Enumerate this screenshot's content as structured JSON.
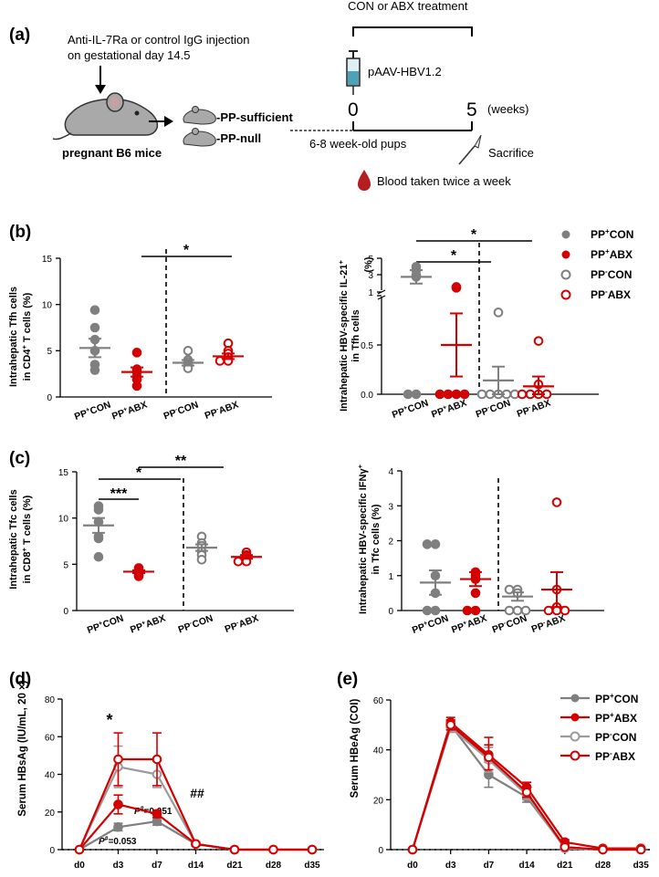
{
  "schematic": {
    "label": "(a)",
    "injection_line1": "Anti-IL-7Ra or control IgG injection",
    "injection_line2": "on gestational day 14.5",
    "mother": "pregnant B6 mice",
    "pp_sufficient": "-PP-sufficient",
    "pp_null": "-PP-null",
    "treatment": "CON or ABX treatment",
    "vector": "pAAV-HBV1.2",
    "week0": "0",
    "week5": "5",
    "weeks": "(weeks)",
    "pups": "6-8 week-old pups",
    "sacrifice": "Sacrifice",
    "blood": "Blood taken twice a week"
  },
  "panel_labels": {
    "b": "(b)",
    "c": "(c)",
    "d": "(d)",
    "e": "(e)"
  },
  "groups": [
    {
      "pre": "PP",
      "sup": "+",
      "post": "CON"
    },
    {
      "pre": "PP",
      "sup": "+",
      "post": "ABX"
    },
    {
      "pre": "PP",
      "sup": "-",
      "post": "CON"
    },
    {
      "pre": "PP",
      "sup": "-",
      "post": "ABX"
    }
  ],
  "colors": {
    "gray": "#7f7f7f",
    "red": "#d40000"
  },
  "scatter_legend": [
    {
      "pre": "PP",
      "sup": "+",
      "post": "CON"
    },
    {
      "pre": "PP",
      "sup": "+",
      "post": "ABX"
    },
    {
      "pre": "PP",
      "sup": "-",
      "post": "CON"
    },
    {
      "pre": "PP",
      "sup": "-",
      "post": "ABX"
    }
  ],
  "line_legend": [
    {
      "pre": "PP",
      "sup": "+",
      "post": "CON"
    },
    {
      "pre": "PP",
      "sup": "+",
      "post": "ABX"
    },
    {
      "pre": "PP",
      "sup": "-",
      "post": "CON"
    },
    {
      "pre": "PP",
      "sup": "-",
      "post": "ABX"
    }
  ],
  "chart_data": [
    {
      "id": "b1",
      "type": "scatter",
      "ylabel1": "Intrahepatic Tfh cells",
      "ylabel2": "in CD4",
      "ylabel2_sup": "+",
      "ylabel2_post": " T cells (%)",
      "ylim": [
        0,
        15
      ],
      "yticks": [
        "0",
        "5",
        "10",
        "15"
      ],
      "points": [
        [
          9.4,
          7.5,
          6.2,
          5.0,
          3.5,
          2.9
        ],
        [
          4.8,
          3.0,
          2.7,
          2.2,
          1.9,
          1.2
        ],
        [
          5.0,
          4.0,
          3.8,
          3.5,
          3.3,
          3.1
        ],
        [
          5.8,
          5.0,
          4.7,
          4.3,
          3.9,
          3.9
        ]
      ],
      "means": [
        5.3,
        2.7,
        3.7,
        4.4
      ],
      "sems": [
        1.0,
        0.5,
        0.3,
        0.3
      ],
      "significance": [
        {
          "from": 1,
          "to": 3,
          "text": "*"
        }
      ]
    },
    {
      "id": "b2",
      "type": "scatter",
      "ylabel1": "Intrahepatic HBV-specific IL-21",
      "ylabel1_sup": "+",
      "ylabel2": "in Tfh cells",
      "ylabel3": "(%)",
      "ylim": [
        0,
        1.0
      ],
      "ybreak_top": [
        1,
        5
      ],
      "yticks": [
        "0.0",
        "0.5",
        "1.0"
      ],
      "yticks_top": [
        "1",
        "3",
        "5"
      ],
      "points": [
        [
          4.0,
          3.6,
          3.0,
          2.8,
          0.0,
          0.0
        ],
        [
          1.6,
          1.5,
          0.0,
          0.0,
          0.0,
          0.0
        ],
        [
          0.83,
          0.0,
          0.0,
          0.0,
          0.0,
          0.0
        ],
        [
          0.54,
          0.1,
          0.0,
          0.0,
          0.0,
          0.0
        ]
      ],
      "means": [
        2.8,
        0.5,
        0.14,
        0.08
      ],
      "sems": [
        0.8,
        0.32,
        0.14,
        0.1
      ],
      "significance": [
        {
          "from": 0,
          "to": 1,
          "text": "*"
        },
        {
          "from": 0,
          "to": 2,
          "text": "*"
        }
      ]
    },
    {
      "id": "c1",
      "type": "scatter",
      "ylabel1": "Intrahepatic Tfc cells",
      "ylabel2": "in CD8",
      "ylabel2_sup": "+",
      "ylabel2_post": " T cells (%)",
      "ylim": [
        0,
        15
      ],
      "yticks": [
        "0",
        "5",
        "10",
        "15"
      ],
      "points": [
        [
          11.3,
          10.9,
          9.6,
          8.0,
          7.8,
          5.8
        ],
        [
          4.6,
          4.3,
          4.2,
          4.1,
          3.9,
          3.7
        ],
        [
          8.0,
          7.3,
          7.0,
          6.4,
          6.0,
          5.5
        ],
        [
          6.3,
          6.0,
          5.9,
          5.7,
          5.3,
          5.3
        ]
      ],
      "means": [
        9.2,
        4.2,
        6.8,
        5.8
      ],
      "sems": [
        0.8,
        0.15,
        0.35,
        0.2
      ],
      "significance": [
        {
          "from": 0,
          "to": 1,
          "text": "***"
        },
        {
          "from": 1,
          "to": 2,
          "text": "*"
        },
        {
          "from": 1,
          "to": 3,
          "text": "**"
        }
      ]
    },
    {
      "id": "c2",
      "type": "scatter",
      "ylabel1": "Intrahepatic HBV-specific IFN",
      "ylabel1_greek": "γ",
      "ylabel1_sup": "+",
      "ylabel2": "in Tfc cells (%)",
      "ylim": [
        0,
        4
      ],
      "yticks": [
        "0",
        "1",
        "2",
        "3",
        "4"
      ],
      "points": [
        [
          1.9,
          1.9,
          1.0,
          0.5,
          0.0,
          0.0
        ],
        [
          1.1,
          1.0,
          0.9,
          0.5,
          0.0,
          0.0
        ],
        [
          0.6,
          0.6,
          0.5,
          0.0,
          0.0,
          0.0
        ],
        [
          3.1,
          0.6,
          0.1,
          0.0,
          0.0,
          0.0
        ]
      ],
      "means": [
        0.8,
        0.9,
        0.4,
        0.6
      ],
      "sems": [
        0.35,
        0.2,
        0.12,
        0.5
      ],
      "significance": []
    },
    {
      "id": "d",
      "type": "line",
      "ylabel": "Serum HBsAg (IU/mL, 20 ×)",
      "categories": [
        "d0",
        "d3",
        "d7",
        "d14",
        "d21",
        "d28",
        "d35"
      ],
      "ylim": [
        0,
        80
      ],
      "yticks": [
        "0",
        "20",
        "40",
        "60",
        "80"
      ],
      "series": [
        {
          "name": "PP+CON",
          "color": "#7f7f7f",
          "open": false,
          "values": [
            0,
            12,
            15,
            3,
            0,
            0,
            0
          ],
          "err": [
            0,
            2,
            2,
            1,
            0,
            0,
            0
          ]
        },
        {
          "name": "PP+ABX",
          "color": "#d40000",
          "open": false,
          "values": [
            0,
            24,
            19,
            3,
            0,
            0,
            0
          ],
          "err": [
            0,
            5,
            2,
            1,
            0,
            0,
            0
          ]
        },
        {
          "name": "PP-CON",
          "color": "#9a9a9a",
          "open": true,
          "values": [
            0,
            44,
            40,
            3,
            0,
            0,
            0
          ],
          "err": [
            0,
            11,
            7,
            1,
            0,
            0,
            0
          ]
        },
        {
          "name": "PP-ABX",
          "color": "#d40000",
          "open": true,
          "values": [
            0,
            48,
            48,
            3,
            0,
            0,
            0
          ],
          "err": [
            0,
            14,
            14,
            1,
            0,
            0,
            0
          ]
        }
      ],
      "annotations": {
        "star": "*",
        "hash": "##",
        "p1_label": "P",
        "p1_sup": "#",
        "p1_value": "=0.053",
        "p2_label": "P",
        "p2_sup": "#",
        "p2_value": "=0.051"
      }
    },
    {
      "id": "e",
      "type": "line",
      "ylabel": "Serum HBeAg (COI)",
      "categories": [
        "d0",
        "d3",
        "d7",
        "d14",
        "d21",
        "d28",
        "d35"
      ],
      "ylim": [
        0,
        60
      ],
      "yticks": [
        "0",
        "20",
        "40",
        "60"
      ],
      "series": [
        {
          "name": "PP+CON",
          "color": "#7f7f7f",
          "open": false,
          "values": [
            0,
            50,
            30,
            21,
            1,
            0,
            0
          ],
          "err": [
            0,
            2,
            5,
            2,
            0.5,
            0,
            0
          ]
        },
        {
          "name": "PP+ABX",
          "color": "#d40000",
          "open": false,
          "values": [
            0,
            51,
            38,
            25,
            3,
            0.5,
            0.5
          ],
          "err": [
            0,
            2,
            7,
            2,
            1,
            0.2,
            0.2
          ]
        },
        {
          "name": "PP-CON",
          "color": "#9a9a9a",
          "open": true,
          "values": [
            0,
            49,
            36,
            22,
            0.5,
            0,
            0
          ],
          "err": [
            0,
            2,
            5,
            2,
            0.5,
            0,
            0
          ]
        },
        {
          "name": "PP-ABX",
          "color": "#d40000",
          "open": true,
          "values": [
            0,
            50,
            37,
            23,
            1,
            0,
            0
          ],
          "err": [
            0,
            2,
            5,
            2,
            0.5,
            0,
            0
          ]
        }
      ]
    }
  ]
}
